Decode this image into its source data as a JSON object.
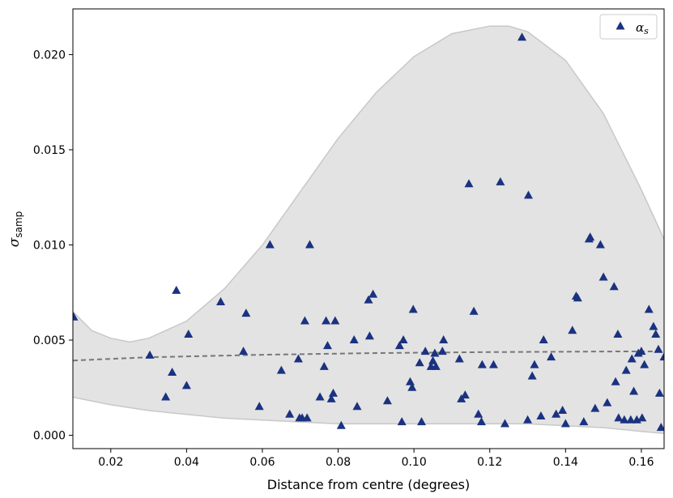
{
  "chart_data": {
    "type": "scatter",
    "xlabel": "Distance from centre (degrees)",
    "ylabel": "σ",
    "ylabel_subscript": "samp",
    "xlim": [
      0.01,
      0.166
    ],
    "ylim": [
      -0.0007,
      0.0224
    ],
    "x_ticks": [
      0.02,
      0.04,
      0.06,
      0.08,
      0.1,
      0.12,
      0.14,
      0.16
    ],
    "x_tick_labels": [
      "0.02",
      "0.04",
      "0.06",
      "0.08",
      "0.10",
      "0.12",
      "0.14",
      "0.16"
    ],
    "y_ticks": [
      0.0,
      0.005,
      0.01,
      0.015,
      0.02
    ],
    "y_tick_labels": [
      "0.000",
      "0.005",
      "0.010",
      "0.015",
      "0.020"
    ],
    "grid": false,
    "legend_position": "top-right",
    "legend": [
      {
        "label": "α",
        "subscript": "s",
        "marker": "triangle",
        "color": "#1a3280"
      }
    ],
    "series": [
      {
        "name": "α_s",
        "marker": "triangle",
        "color": "#1a3280",
        "points": [
          [
            0.0102,
            0.0062
          ],
          [
            0.0303,
            0.0042
          ],
          [
            0.0345,
            0.002
          ],
          [
            0.0362,
            0.0033
          ],
          [
            0.0373,
            0.0076
          ],
          [
            0.04,
            0.0026
          ],
          [
            0.0405,
            0.0053
          ],
          [
            0.049,
            0.007
          ],
          [
            0.055,
            0.0044
          ],
          [
            0.0557,
            0.0064
          ],
          [
            0.0592,
            0.0015
          ],
          [
            0.062,
            0.01
          ],
          [
            0.065,
            0.0034
          ],
          [
            0.0672,
            0.0011
          ],
          [
            0.0695,
            0.004
          ],
          [
            0.0698,
            0.0009
          ],
          [
            0.0705,
            0.0009
          ],
          [
            0.0712,
            0.006
          ],
          [
            0.0718,
            0.0009
          ],
          [
            0.0725,
            0.01
          ],
          [
            0.0752,
            0.002
          ],
          [
            0.0763,
            0.0036
          ],
          [
            0.0768,
            0.006
          ],
          [
            0.0772,
            0.0047
          ],
          [
            0.0782,
            0.0019
          ],
          [
            0.0787,
            0.0022
          ],
          [
            0.0792,
            0.006
          ],
          [
            0.0808,
            0.0005
          ],
          [
            0.0842,
            0.005
          ],
          [
            0.085,
            0.0015
          ],
          [
            0.088,
            0.0071
          ],
          [
            0.0883,
            0.0052
          ],
          [
            0.0892,
            0.0074
          ],
          [
            0.093,
            0.0018
          ],
          [
            0.0962,
            0.0047
          ],
          [
            0.0968,
            0.0007
          ],
          [
            0.0972,
            0.005
          ],
          [
            0.099,
            0.0028
          ],
          [
            0.0995,
            0.0025
          ],
          [
            0.0998,
            0.0066
          ],
          [
            0.1015,
            0.0038
          ],
          [
            0.102,
            0.0007
          ],
          [
            0.103,
            0.0044
          ],
          [
            0.1045,
            0.0036
          ],
          [
            0.105,
            0.0039
          ],
          [
            0.1055,
            0.0043
          ],
          [
            0.1058,
            0.0036
          ],
          [
            0.1075,
            0.0044
          ],
          [
            0.1078,
            0.005
          ],
          [
            0.112,
            0.004
          ],
          [
            0.1125,
            0.0019
          ],
          [
            0.1135,
            0.0021
          ],
          [
            0.1145,
            0.0132
          ],
          [
            0.1158,
            0.0065
          ],
          [
            0.117,
            0.0011
          ],
          [
            0.1178,
            0.0007
          ],
          [
            0.118,
            0.0037
          ],
          [
            0.121,
            0.0037
          ],
          [
            0.1228,
            0.0133
          ],
          [
            0.124,
            0.0006
          ],
          [
            0.1285,
            0.0209
          ],
          [
            0.13,
            0.0008
          ],
          [
            0.1302,
            0.0126
          ],
          [
            0.1312,
            0.0031
          ],
          [
            0.1318,
            0.0037
          ],
          [
            0.1335,
            0.001
          ],
          [
            0.1342,
            0.005
          ],
          [
            0.1362,
            0.0041
          ],
          [
            0.1375,
            0.0011
          ],
          [
            0.1392,
            0.0013
          ],
          [
            0.14,
            0.0006
          ],
          [
            0.1418,
            0.0055
          ],
          [
            0.1428,
            0.0073
          ],
          [
            0.1432,
            0.0072
          ],
          [
            0.1448,
            0.0007
          ],
          [
            0.1462,
            0.0103
          ],
          [
            0.1465,
            0.0104
          ],
          [
            0.1478,
            0.0014
          ],
          [
            0.1492,
            0.01
          ],
          [
            0.15,
            0.0083
          ],
          [
            0.151,
            0.0017
          ],
          [
            0.1528,
            0.0078
          ],
          [
            0.1532,
            0.0028
          ],
          [
            0.1538,
            0.0053
          ],
          [
            0.154,
            0.0009
          ],
          [
            0.1555,
            0.0008
          ],
          [
            0.156,
            0.0034
          ],
          [
            0.1572,
            0.0008
          ],
          [
            0.1575,
            0.004
          ],
          [
            0.158,
            0.0023
          ],
          [
            0.1588,
            0.0008
          ],
          [
            0.1592,
            0.0043
          ],
          [
            0.16,
            0.0044
          ],
          [
            0.1602,
            0.0009
          ],
          [
            0.1608,
            0.0037
          ],
          [
            0.162,
            0.0066
          ],
          [
            0.1632,
            0.0057
          ],
          [
            0.1638,
            0.0053
          ],
          [
            0.1645,
            0.0045
          ],
          [
            0.1648,
            0.0022
          ],
          [
            0.1652,
            0.0004
          ],
          [
            0.166,
            0.0041
          ]
        ]
      }
    ],
    "trend_line": {
      "style": "dashed",
      "color": "#777777",
      "points": [
        [
          0.01,
          0.00393
        ],
        [
          0.03,
          0.0041
        ],
        [
          0.06,
          0.00423
        ],
        [
          0.09,
          0.00432
        ],
        [
          0.12,
          0.00437
        ],
        [
          0.15,
          0.0044
        ],
        [
          0.166,
          0.00441
        ]
      ]
    },
    "band": {
      "color": "#e3e3e3",
      "edge_color": "#c8c8c8",
      "upper": [
        [
          0.01,
          0.0065
        ],
        [
          0.015,
          0.0055
        ],
        [
          0.02,
          0.0051
        ],
        [
          0.025,
          0.0049
        ],
        [
          0.03,
          0.0051
        ],
        [
          0.04,
          0.006
        ],
        [
          0.05,
          0.0077
        ],
        [
          0.06,
          0.01
        ],
        [
          0.07,
          0.0128
        ],
        [
          0.08,
          0.0156
        ],
        [
          0.09,
          0.018
        ],
        [
          0.1,
          0.0199
        ],
        [
          0.11,
          0.0211
        ],
        [
          0.12,
          0.0215
        ],
        [
          0.125,
          0.0215
        ],
        [
          0.13,
          0.0212
        ],
        [
          0.14,
          0.0197
        ],
        [
          0.15,
          0.0169
        ],
        [
          0.16,
          0.0129
        ],
        [
          0.166,
          0.0103
        ]
      ],
      "lower": [
        [
          0.01,
          0.002
        ],
        [
          0.02,
          0.0016
        ],
        [
          0.03,
          0.0013
        ],
        [
          0.04,
          0.0011
        ],
        [
          0.05,
          0.0009
        ],
        [
          0.06,
          0.0008
        ],
        [
          0.07,
          0.0007
        ],
        [
          0.08,
          0.0006
        ],
        [
          0.09,
          0.0006
        ],
        [
          0.1,
          0.0006
        ],
        [
          0.11,
          0.0006
        ],
        [
          0.12,
          0.0006
        ],
        [
          0.13,
          0.0006
        ],
        [
          0.14,
          0.0005
        ],
        [
          0.15,
          0.0004
        ],
        [
          0.16,
          0.0002
        ],
        [
          0.166,
          0.0001
        ]
      ]
    }
  }
}
